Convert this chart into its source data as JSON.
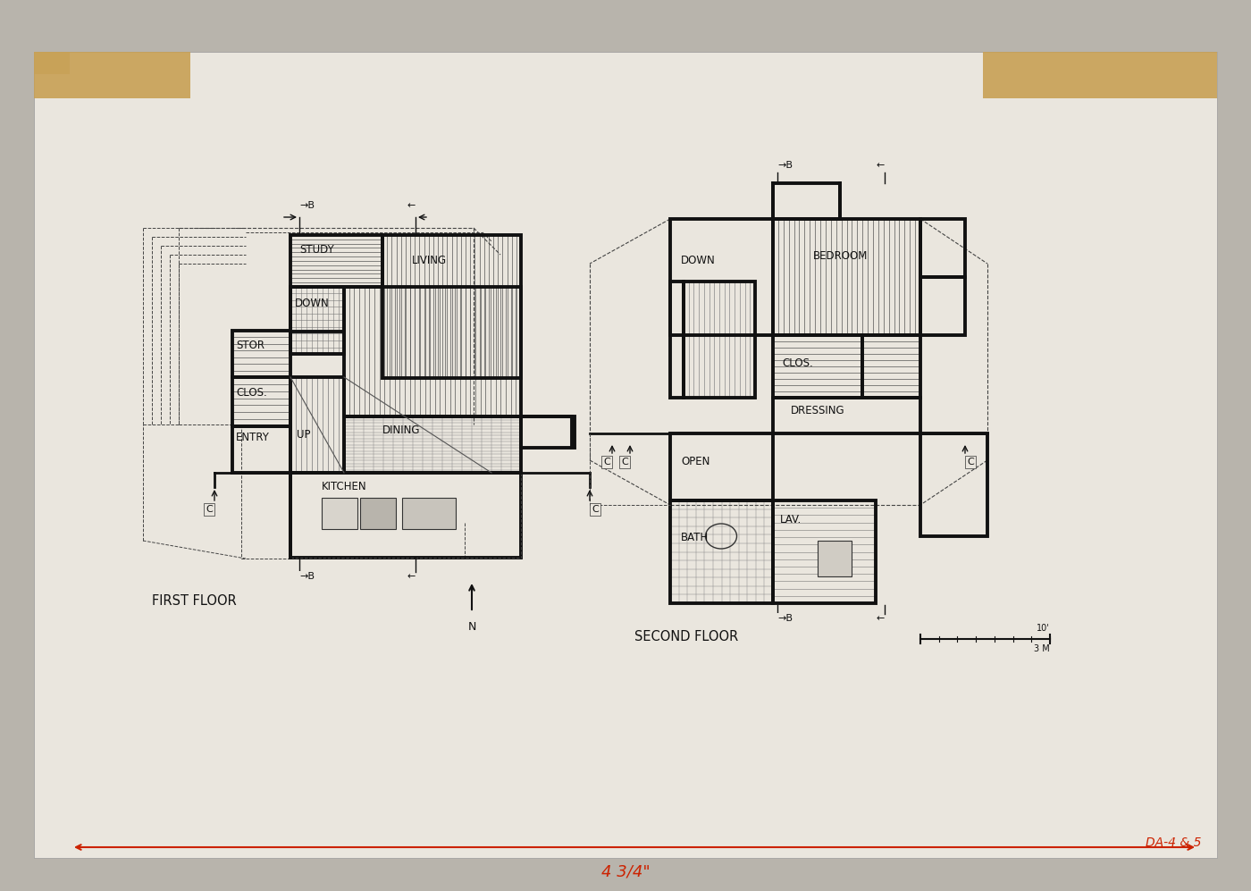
{
  "bg_outer": "#c8c4bc",
  "bg_paper": "#ece8e0",
  "tape_color": "#c8a060",
  "line_color": "#1a1a1a",
  "wall_color": "#111111",
  "red_color": "#cc2200",
  "dashed_color": "#444444",
  "hatch_color": "#666666",
  "first_floor_label": "FIRST FLOOR",
  "second_floor_label": "SECOND FLOOR",
  "annotation_da": "DA-4 & 5",
  "annotation_dim": "4 3/4\""
}
